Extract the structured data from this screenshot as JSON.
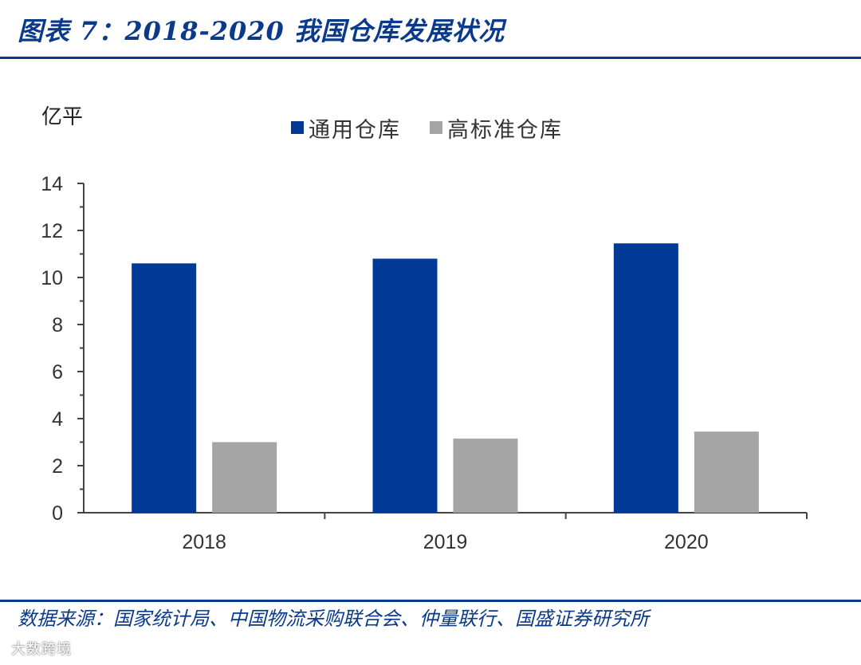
{
  "header": {
    "title": "图表 7：2018-2020 我国仓库发展状况"
  },
  "chart_data": {
    "type": "bar",
    "unit": "亿平",
    "categories": [
      "2018",
      "2019",
      "2020"
    ],
    "series": [
      {
        "name": "通用仓库",
        "values": [
          10.6,
          10.8,
          11.45
        ],
        "color": "#003a96"
      },
      {
        "name": "高标准仓库",
        "values": [
          3.0,
          3.15,
          3.45
        ],
        "color": "#a5a5a5"
      }
    ],
    "ylim": [
      0,
      14
    ],
    "y_ticks": [
      "0",
      "2",
      "4",
      "6",
      "8",
      "10",
      "12",
      "14"
    ],
    "y_minor_ticks": true,
    "grid": false,
    "legend": "top"
  },
  "footer": {
    "source": "数据来源：国家统计局、中国物流采购联合会、仲量联行、国盛证券研究所"
  },
  "watermark": {
    "text": "大数跨境"
  }
}
